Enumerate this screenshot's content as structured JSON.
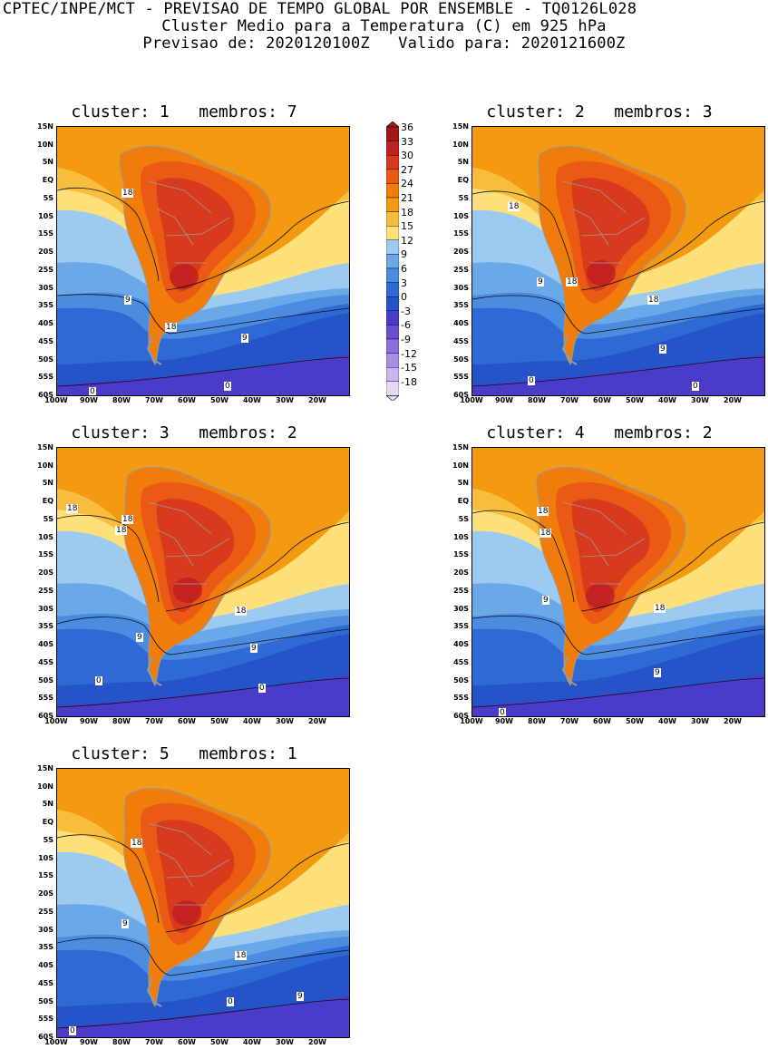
{
  "header": {
    "line1": "CPTEC/INPE/MCT - PREVISAO DE TEMPO GLOBAL POR ENSEMBLE - TQ0126L028",
    "line2": "Cluster Medio para a Temperatura (C) em 925 hPa",
    "line3": "Previsao de: 2020120100Z   Valido para: 2020121600Z"
  },
  "panels": [
    {
      "title": "cluster: 1   membros: 7",
      "contour_labels": [
        "18",
        "9",
        "18",
        "9",
        "0",
        "0"
      ]
    },
    {
      "title": "cluster: 2   membros: 3",
      "contour_labels": [
        "18",
        "9",
        "18",
        "18",
        "9",
        "0",
        "0"
      ]
    },
    {
      "title": "cluster: 3   membros: 2",
      "contour_labels": [
        "18",
        "18",
        "18",
        "18",
        "9",
        "9",
        "0",
        "0"
      ]
    },
    {
      "title": "cluster: 4   membros: 2",
      "contour_labels": [
        "18",
        "18",
        "9",
        "18",
        "9",
        "0"
      ]
    },
    {
      "title": "cluster: 5   membros: 1",
      "contour_labels": [
        "18",
        "9",
        "18",
        "9",
        "0",
        "0"
      ]
    }
  ],
  "lat_labels": [
    "15N",
    "10N",
    "5N",
    "EQ",
    "5S",
    "10S",
    "15S",
    "20S",
    "25S",
    "30S",
    "35S",
    "40S",
    "45S",
    "50S",
    "55S",
    "60S"
  ],
  "lon_labels": [
    "100W",
    "90W",
    "80W",
    "70W",
    "60W",
    "50W",
    "40W",
    "30W",
    "20W"
  ],
  "colorbar": {
    "labels": [
      "36",
      "33",
      "30",
      "27",
      "24",
      "21",
      "18",
      "15",
      "12",
      "9",
      "6",
      "3",
      "0",
      "-3",
      "-6",
      "-9",
      "-12",
      "-15",
      "-18"
    ],
    "colors": [
      "#a01818",
      "#c02020",
      "#d83a1e",
      "#ea5a14",
      "#f07c0c",
      "#f39a10",
      "#f9bd3e",
      "#fde07a",
      "#9ccaf0",
      "#6aa8e8",
      "#4c8ce0",
      "#2f6ad4",
      "#2554c8",
      "#4a3cc8",
      "#6a50d0",
      "#8a70dc",
      "#a88ee4",
      "#c8b6ee",
      "#e4daf4"
    ]
  }
}
